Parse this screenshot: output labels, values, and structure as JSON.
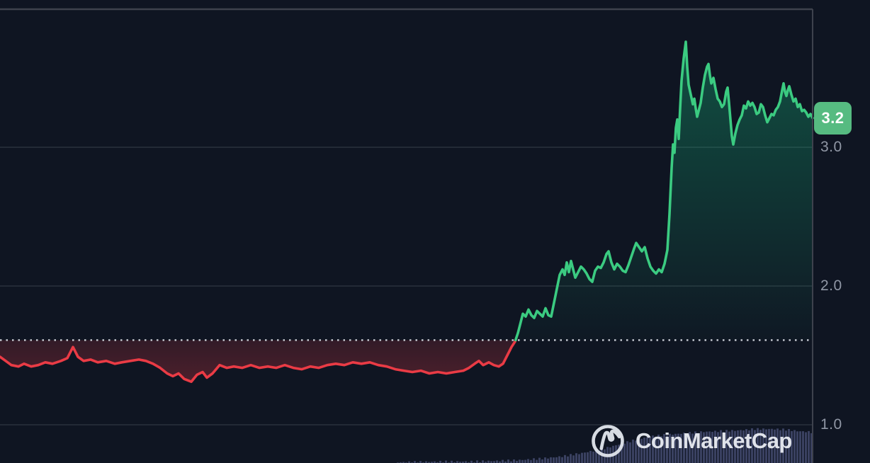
{
  "watermark": {
    "brand": "CoinMarketCap"
  },
  "colors": {
    "background": "#0f1522",
    "border": "#3e424d",
    "grid": "#232a36",
    "axis_text": "#9097a5",
    "up_line": "#3bcb81",
    "up_fill": "#16c784",
    "down_line": "#ea3b45",
    "down_fill": "#ea3943",
    "baseline_dotted": "#ccd0d8",
    "volume_bar": "#3a4161",
    "badge_bg": "#56bb81",
    "badge_text": "#ffffff",
    "watermark_text": "#e9ecf2"
  },
  "chart_data": {
    "type": "line",
    "title": "Price line chart with baseline (red below reference, green above), volume bars at bottom",
    "legend": "none",
    "grid": "horizontal",
    "x_axis": {
      "ticks": [],
      "note": "no x-axis labels visible"
    },
    "y_axis": {
      "ticks": [
        {
          "label": "3.0",
          "price": 3.0
        },
        {
          "label": "2.0",
          "price": 2.0
        },
        {
          "label": "1.0",
          "price": 1.0
        }
      ],
      "range_visible": [
        0.72,
        4.02
      ]
    },
    "baseline_price": 1.61,
    "last_price": 3.2,
    "last_price_label": "3.2",
    "series": [
      {
        "name": "price",
        "points": [
          [
            0,
            1.49
          ],
          [
            8,
            1.46
          ],
          [
            16,
            1.43
          ],
          [
            26,
            1.42
          ],
          [
            34,
            1.44
          ],
          [
            44,
            1.42
          ],
          [
            54,
            1.43
          ],
          [
            64,
            1.45
          ],
          [
            74,
            1.44
          ],
          [
            86,
            1.46
          ],
          [
            95,
            1.48
          ],
          [
            103,
            1.56
          ],
          [
            110,
            1.49
          ],
          [
            118,
            1.46
          ],
          [
            128,
            1.47
          ],
          [
            138,
            1.45
          ],
          [
            150,
            1.46
          ],
          [
            162,
            1.44
          ],
          [
            172,
            1.45
          ],
          [
            184,
            1.46
          ],
          [
            196,
            1.47
          ],
          [
            206,
            1.46
          ],
          [
            216,
            1.44
          ],
          [
            226,
            1.41
          ],
          [
            236,
            1.37
          ],
          [
            244,
            1.35
          ],
          [
            252,
            1.37
          ],
          [
            260,
            1.33
          ],
          [
            270,
            1.31
          ],
          [
            278,
            1.36
          ],
          [
            286,
            1.38
          ],
          [
            292,
            1.34
          ],
          [
            300,
            1.37
          ],
          [
            310,
            1.43
          ],
          [
            320,
            1.41
          ],
          [
            330,
            1.42
          ],
          [
            342,
            1.41
          ],
          [
            354,
            1.43
          ],
          [
            366,
            1.41
          ],
          [
            378,
            1.42
          ],
          [
            390,
            1.41
          ],
          [
            402,
            1.43
          ],
          [
            414,
            1.41
          ],
          [
            426,
            1.4
          ],
          [
            438,
            1.42
          ],
          [
            450,
            1.41
          ],
          [
            462,
            1.43
          ],
          [
            474,
            1.44
          ],
          [
            486,
            1.43
          ],
          [
            498,
            1.45
          ],
          [
            510,
            1.44
          ],
          [
            522,
            1.45
          ],
          [
            534,
            1.43
          ],
          [
            546,
            1.42
          ],
          [
            558,
            1.4
          ],
          [
            570,
            1.39
          ],
          [
            582,
            1.38
          ],
          [
            594,
            1.39
          ],
          [
            606,
            1.37
          ],
          [
            618,
            1.38
          ],
          [
            630,
            1.37
          ],
          [
            642,
            1.38
          ],
          [
            654,
            1.39
          ],
          [
            662,
            1.41
          ],
          [
            670,
            1.44
          ],
          [
            676,
            1.46
          ],
          [
            682,
            1.43
          ],
          [
            690,
            1.45
          ],
          [
            697,
            1.43
          ],
          [
            704,
            1.42
          ],
          [
            710,
            1.44
          ],
          [
            716,
            1.5
          ],
          [
            722,
            1.56
          ],
          [
            727,
            1.6
          ],
          [
            731,
            1.66
          ],
          [
            734,
            1.72
          ],
          [
            738,
            1.8
          ],
          [
            742,
            1.78
          ],
          [
            746,
            1.83
          ],
          [
            750,
            1.79
          ],
          [
            754,
            1.77
          ],
          [
            758,
            1.82
          ],
          [
            762,
            1.8
          ],
          [
            766,
            1.78
          ],
          [
            770,
            1.84
          ],
          [
            774,
            1.79
          ],
          [
            778,
            1.78
          ],
          [
            782,
            1.88
          ],
          [
            786,
            1.98
          ],
          [
            790,
            2.08
          ],
          [
            794,
            2.12
          ],
          [
            797,
            2.08
          ],
          [
            800,
            2.17
          ],
          [
            803,
            2.1
          ],
          [
            806,
            2.18
          ],
          [
            809,
            2.12
          ],
          [
            812,
            2.06
          ],
          [
            816,
            2.1
          ],
          [
            820,
            2.14
          ],
          [
            824,
            2.12
          ],
          [
            828,
            2.09
          ],
          [
            832,
            2.05
          ],
          [
            836,
            2.03
          ],
          [
            840,
            2.11
          ],
          [
            844,
            2.14
          ],
          [
            848,
            2.13
          ],
          [
            852,
            2.17
          ],
          [
            856,
            2.23
          ],
          [
            859,
            2.25
          ],
          [
            863,
            2.17
          ],
          [
            867,
            2.12
          ],
          [
            871,
            2.16
          ],
          [
            875,
            2.14
          ],
          [
            879,
            2.11
          ],
          [
            883,
            2.1
          ],
          [
            887,
            2.15
          ],
          [
            891,
            2.21
          ],
          [
            895,
            2.27
          ],
          [
            898,
            2.31
          ],
          [
            902,
            2.28
          ],
          [
            906,
            2.25
          ],
          [
            910,
            2.28
          ],
          [
            914,
            2.2
          ],
          [
            918,
            2.14
          ],
          [
            922,
            2.11
          ],
          [
            926,
            2.09
          ],
          [
            930,
            2.12
          ],
          [
            934,
            2.1
          ],
          [
            938,
            2.16
          ],
          [
            942,
            2.26
          ],
          [
            945,
            2.52
          ],
          [
            948,
            2.85
          ],
          [
            950,
            3.02
          ],
          [
            952,
            2.96
          ],
          [
            954,
            3.14
          ],
          [
            956,
            3.2
          ],
          [
            958,
            3.06
          ],
          [
            960,
            3.28
          ],
          [
            962,
            3.48
          ],
          [
            965,
            3.64
          ],
          [
            968,
            3.76
          ],
          [
            970,
            3.58
          ],
          [
            972,
            3.45
          ],
          [
            975,
            3.38
          ],
          [
            978,
            3.31
          ],
          [
            980,
            3.35
          ],
          [
            982,
            3.28
          ],
          [
            984,
            3.22
          ],
          [
            986,
            3.26
          ],
          [
            989,
            3.32
          ],
          [
            992,
            3.43
          ],
          [
            995,
            3.52
          ],
          [
            998,
            3.58
          ],
          [
            1000,
            3.6
          ],
          [
            1002,
            3.52
          ],
          [
            1004,
            3.46
          ],
          [
            1007,
            3.5
          ],
          [
            1010,
            3.42
          ],
          [
            1013,
            3.35
          ],
          [
            1016,
            3.33
          ],
          [
            1019,
            3.29
          ],
          [
            1022,
            3.31
          ],
          [
            1025,
            3.4
          ],
          [
            1027,
            3.43
          ],
          [
            1029,
            3.32
          ],
          [
            1031,
            3.2
          ],
          [
            1033,
            3.08
          ],
          [
            1035,
            3.02
          ],
          [
            1038,
            3.1
          ],
          [
            1041,
            3.16
          ],
          [
            1044,
            3.2
          ],
          [
            1047,
            3.23
          ],
          [
            1050,
            3.3
          ],
          [
            1053,
            3.28
          ],
          [
            1056,
            3.33
          ],
          [
            1059,
            3.3
          ],
          [
            1062,
            3.32
          ],
          [
            1065,
            3.29
          ],
          [
            1068,
            3.24
          ],
          [
            1071,
            3.25
          ],
          [
            1074,
            3.31
          ],
          [
            1077,
            3.29
          ],
          [
            1080,
            3.23
          ],
          [
            1083,
            3.18
          ],
          [
            1086,
            3.21
          ],
          [
            1089,
            3.24
          ],
          [
            1092,
            3.23
          ],
          [
            1095,
            3.27
          ],
          [
            1098,
            3.29
          ],
          [
            1101,
            3.33
          ],
          [
            1104,
            3.41
          ],
          [
            1106,
            3.46
          ],
          [
            1108,
            3.4
          ],
          [
            1110,
            3.37
          ],
          [
            1112,
            3.41
          ],
          [
            1114,
            3.44
          ],
          [
            1117,
            3.38
          ],
          [
            1120,
            3.33
          ],
          [
            1123,
            3.35
          ],
          [
            1126,
            3.29
          ],
          [
            1129,
            3.31
          ],
          [
            1132,
            3.26
          ],
          [
            1135,
            3.27
          ],
          [
            1138,
            3.25
          ],
          [
            1141,
            3.22
          ],
          [
            1144,
            3.24
          ],
          [
            1147,
            3.21
          ]
        ]
      }
    ],
    "volume_profile_keypoints": [
      [
        560,
        1
      ],
      [
        620,
        2
      ],
      [
        660,
        2
      ],
      [
        700,
        3
      ],
      [
        730,
        4
      ],
      [
        760,
        6
      ],
      [
        790,
        9
      ],
      [
        820,
        14
      ],
      [
        850,
        20
      ],
      [
        875,
        27
      ],
      [
        900,
        34
      ],
      [
        920,
        38
      ],
      [
        940,
        40
      ],
      [
        965,
        42
      ],
      [
        990,
        44
      ],
      [
        1015,
        45
      ],
      [
        1040,
        46
      ],
      [
        1065,
        48
      ],
      [
        1090,
        48
      ],
      [
        1110,
        47
      ],
      [
        1125,
        45
      ],
      [
        1140,
        44
      ],
      [
        1146,
        43
      ]
    ]
  }
}
